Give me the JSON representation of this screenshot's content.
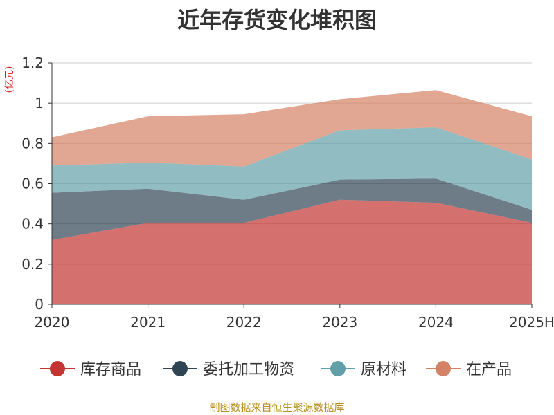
{
  "chart_data": {
    "type": "area",
    "stacked": true,
    "title": "近年存货变化堆积图",
    "ylabel": "(亿元)",
    "categories": [
      "2020",
      "2021",
      "2022",
      "2023",
      "2024",
      "2025H"
    ],
    "ylim": [
      0,
      1.2
    ],
    "yticks": [
      "0",
      "0.2",
      "0.4",
      "0.6",
      "0.8",
      "1",
      "1.2"
    ],
    "grid": true,
    "legend_position": "bottom",
    "series": [
      {
        "name": "库存商品",
        "color": "#c23531",
        "values": [
          0.32,
          0.405,
          0.405,
          0.52,
          0.505,
          0.405
        ]
      },
      {
        "name": "委托加工物资",
        "color": "#2f4554",
        "values": [
          0.235,
          0.17,
          0.115,
          0.1,
          0.12,
          0.065
        ]
      },
      {
        "name": "原材料",
        "color": "#61a0a8",
        "values": [
          0.135,
          0.13,
          0.165,
          0.245,
          0.255,
          0.25
        ]
      },
      {
        "name": "在产品",
        "color": "#d48265",
        "values": [
          0.14,
          0.23,
          0.26,
          0.155,
          0.185,
          0.215
        ]
      }
    ]
  },
  "source_note": "制图数据来自恒生聚源数据库",
  "colors": {
    "title": "#333333",
    "ylabel": "#d42020",
    "source_note": "#b8901d",
    "axis": "#333333",
    "grid": "#cccccc"
  }
}
